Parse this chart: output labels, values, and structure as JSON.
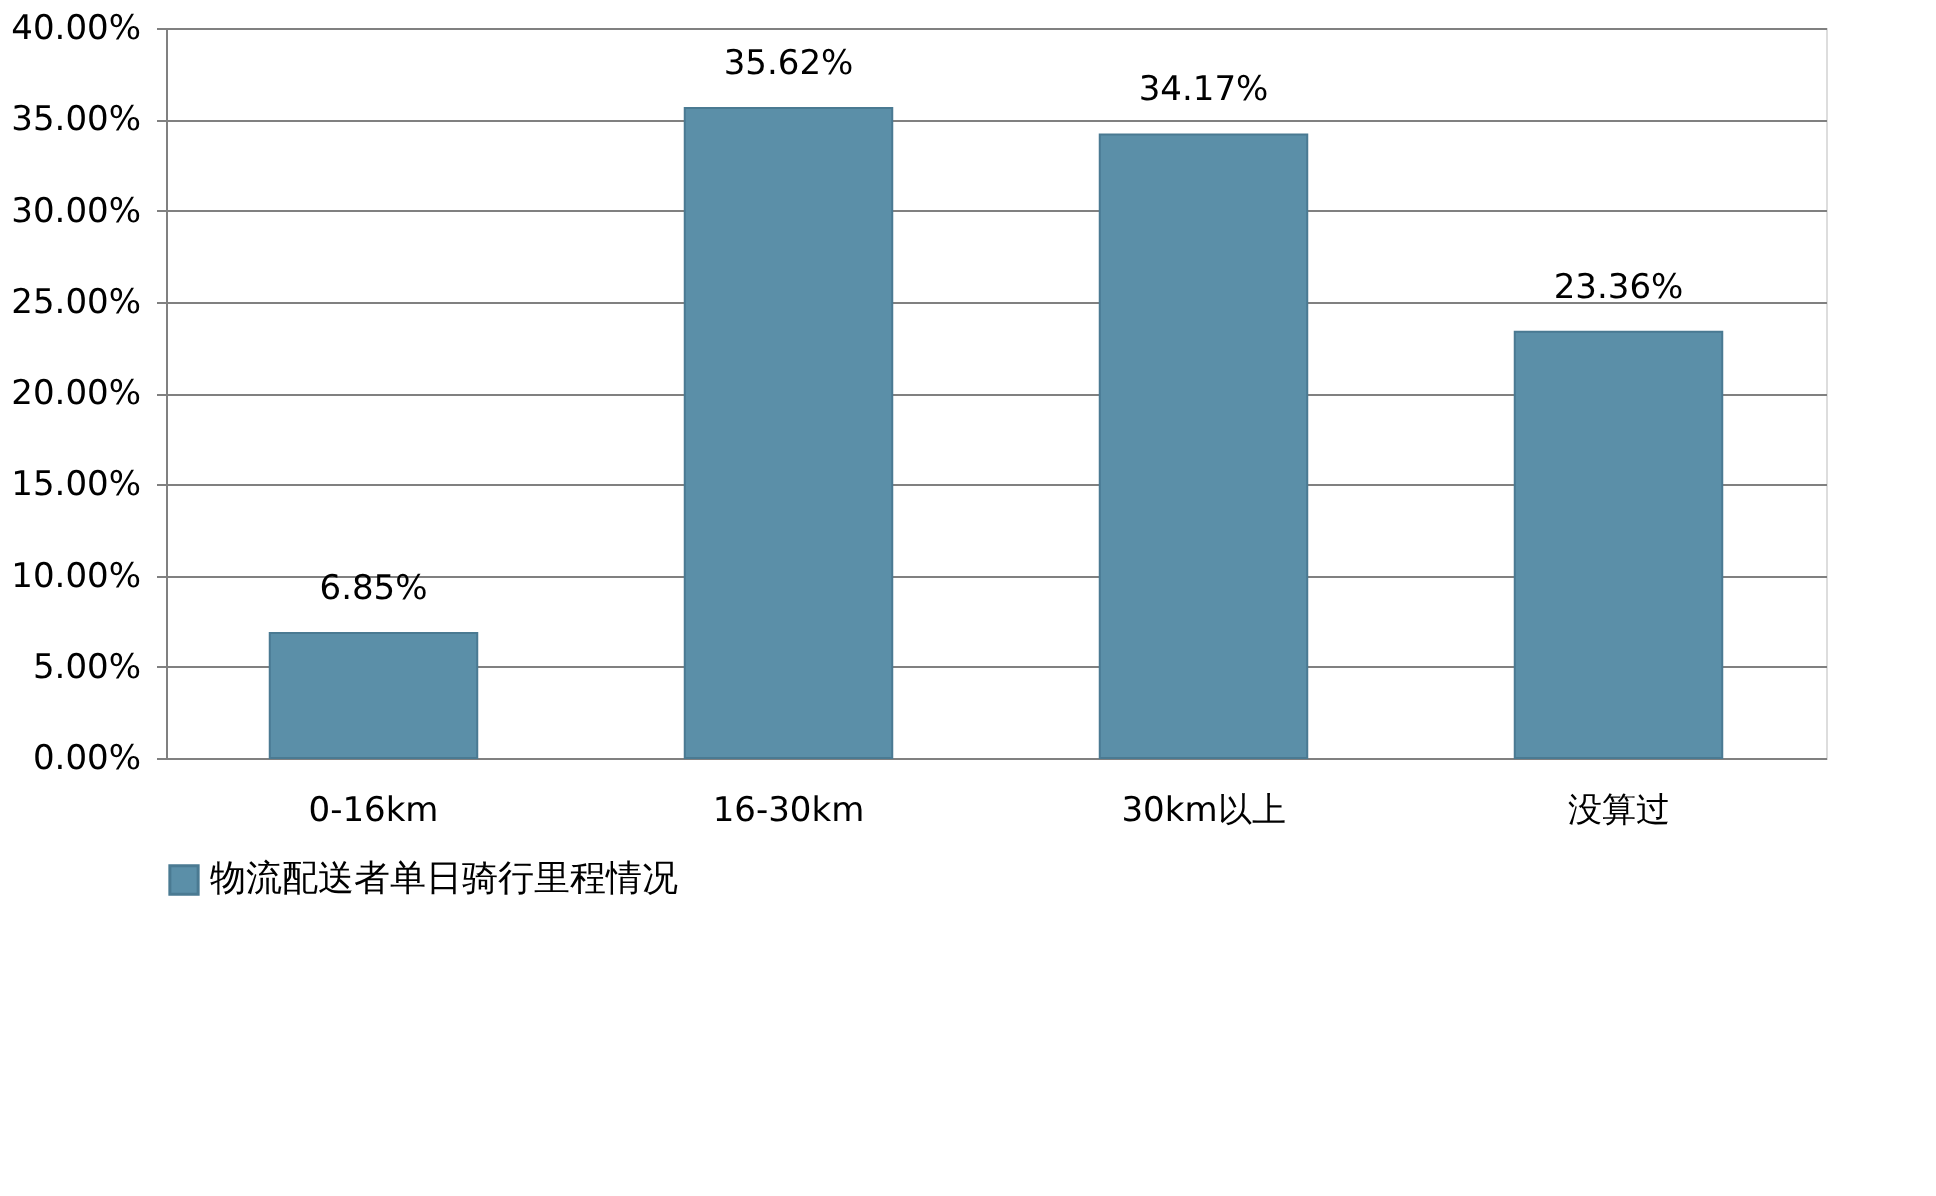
{
  "chart_data": {
    "type": "bar",
    "categories": [
      "0-16km",
      "16-30km",
      "30km以上",
      "没算过"
    ],
    "series": [
      {
        "name": "物流配送者单日骑行里程情况",
        "color": "#5b8fa8",
        "values": [
          6.85,
          35.62,
          34.17,
          23.36
        ],
        "value_labels": [
          "6.85%",
          "35.62%",
          "34.17%",
          "23.36%"
        ]
      }
    ],
    "ylim": [
      0,
      40
    ],
    "yticks": [
      {
        "value": 0,
        "label": "0.00%"
      },
      {
        "value": 5,
        "label": "5.00%"
      },
      {
        "value": 10,
        "label": "10.00%"
      },
      {
        "value": 15,
        "label": "15.00%"
      },
      {
        "value": 20,
        "label": "20.00%"
      },
      {
        "value": 25,
        "label": "25.00%"
      },
      {
        "value": 30,
        "label": "30.00%"
      },
      {
        "value": 35,
        "label": "35.00%"
      },
      {
        "value": 40,
        "label": "40.00%"
      }
    ],
    "grid": "y",
    "legend": "bottom"
  }
}
